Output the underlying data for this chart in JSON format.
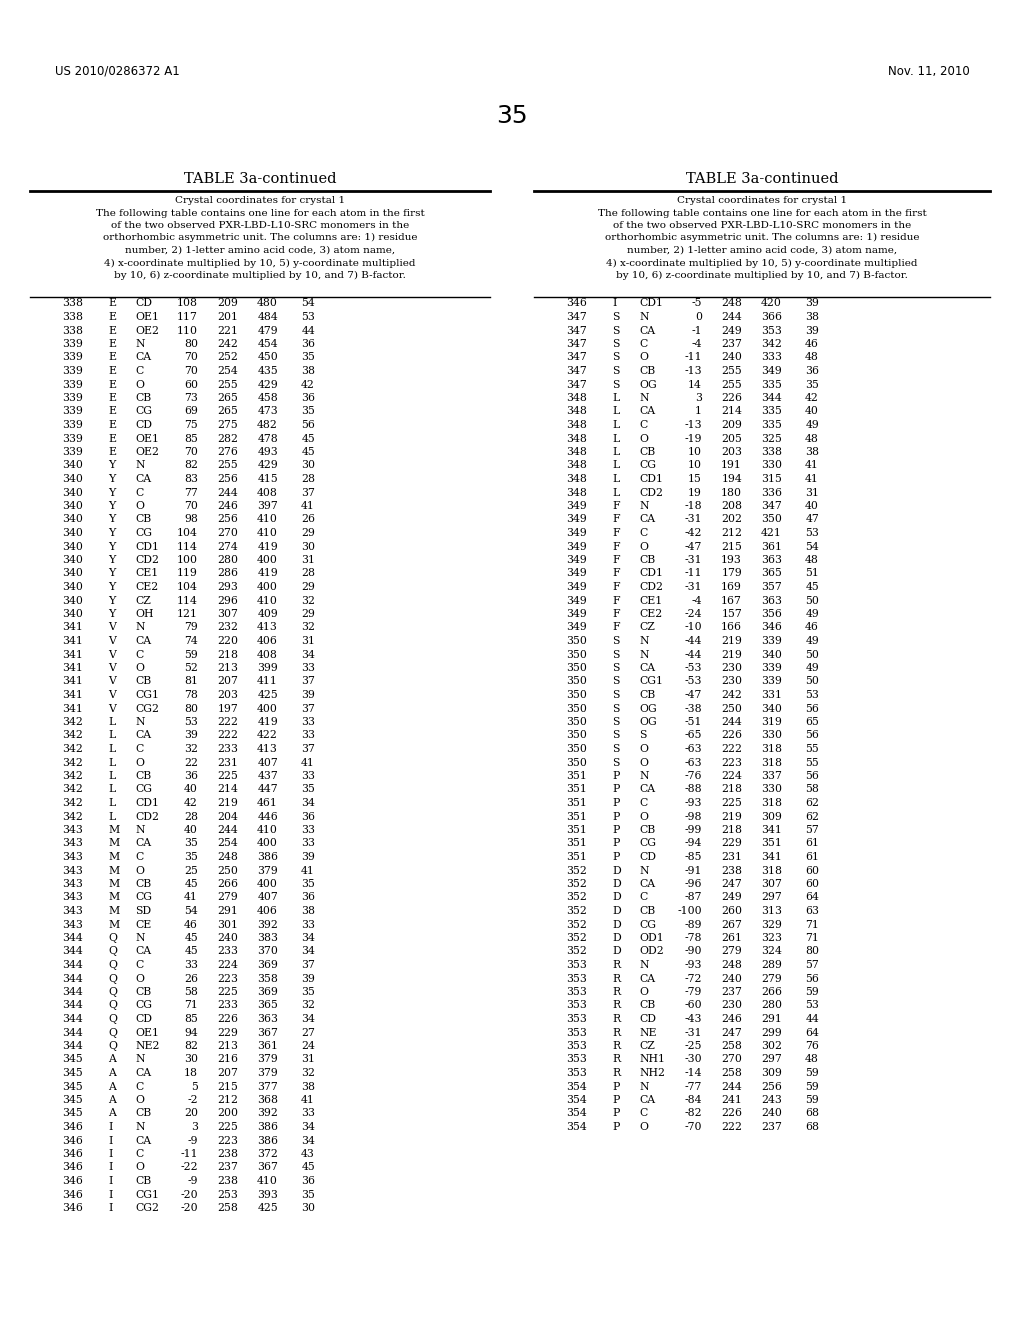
{
  "header_left": "US 2010/0286372 A1",
  "header_right": "Nov. 11, 2010",
  "page_number": "35",
  "table_title": "TABLE 3a-continued",
  "table_description": "Crystal coordinates for crystal 1\nThe following table contains one line for each atom in the first\nof the two observed PXR-LBD-L10-SRC monomers in the\northorhombic asymmetric unit. The columns are: 1) residue\nnumber, 2) 1-letter amino acid code, 3) atom name,\n4) x-coordinate multiplied by 10, 5) y-coordinate multiplied\nby 10, 6) z-coordinate multiplied by 10, and 7) B-factor.",
  "left_data": [
    [
      338,
      "E",
      "CD",
      108,
      209,
      480,
      54
    ],
    [
      338,
      "E",
      "OE1",
      117,
      201,
      484,
      53
    ],
    [
      338,
      "E",
      "OE2",
      110,
      221,
      479,
      44
    ],
    [
      339,
      "E",
      "N",
      80,
      242,
      454,
      36
    ],
    [
      339,
      "E",
      "CA",
      70,
      252,
      450,
      35
    ],
    [
      339,
      "E",
      "C",
      70,
      254,
      435,
      38
    ],
    [
      339,
      "E",
      "O",
      60,
      255,
      429,
      42
    ],
    [
      339,
      "E",
      "CB",
      73,
      265,
      458,
      36
    ],
    [
      339,
      "E",
      "CG",
      69,
      265,
      473,
      35
    ],
    [
      339,
      "E",
      "CD",
      75,
      275,
      482,
      56
    ],
    [
      339,
      "E",
      "OE1",
      85,
      282,
      478,
      45
    ],
    [
      339,
      "E",
      "OE2",
      70,
      276,
      493,
      45
    ],
    [
      340,
      "Y",
      "N",
      82,
      255,
      429,
      30
    ],
    [
      340,
      "Y",
      "CA",
      83,
      256,
      415,
      28
    ],
    [
      340,
      "Y",
      "C",
      77,
      244,
      408,
      37
    ],
    [
      340,
      "Y",
      "O",
      70,
      246,
      397,
      41
    ],
    [
      340,
      "Y",
      "CB",
      98,
      256,
      410,
      26
    ],
    [
      340,
      "Y",
      "CG",
      104,
      270,
      410,
      29
    ],
    [
      340,
      "Y",
      "CD1",
      114,
      274,
      419,
      30
    ],
    [
      340,
      "Y",
      "CD2",
      100,
      280,
      400,
      31
    ],
    [
      340,
      "Y",
      "CE1",
      119,
      286,
      419,
      28
    ],
    [
      340,
      "Y",
      "CE2",
      104,
      293,
      400,
      29
    ],
    [
      340,
      "Y",
      "CZ",
      114,
      296,
      410,
      32
    ],
    [
      340,
      "Y",
      "OH",
      121,
      307,
      409,
      29
    ],
    [
      341,
      "V",
      "N",
      79,
      232,
      413,
      32
    ],
    [
      341,
      "V",
      "CA",
      74,
      220,
      406,
      31
    ],
    [
      341,
      "V",
      "C",
      59,
      218,
      408,
      34
    ],
    [
      341,
      "V",
      "O",
      52,
      213,
      399,
      33
    ],
    [
      341,
      "V",
      "CB",
      81,
      207,
      411,
      37
    ],
    [
      341,
      "V",
      "CG1",
      78,
      203,
      425,
      39
    ],
    [
      341,
      "V",
      "CG2",
      80,
      197,
      400,
      37
    ],
    [
      342,
      "L",
      "N",
      53,
      222,
      419,
      33
    ],
    [
      342,
      "L",
      "CA",
      39,
      222,
      422,
      33
    ],
    [
      342,
      "L",
      "C",
      32,
      233,
      413,
      37
    ],
    [
      342,
      "L",
      "O",
      22,
      231,
      407,
      41
    ],
    [
      342,
      "L",
      "CB",
      36,
      225,
      437,
      33
    ],
    [
      342,
      "L",
      "CG",
      40,
      214,
      447,
      35
    ],
    [
      342,
      "L",
      "CD1",
      42,
      219,
      461,
      34
    ],
    [
      342,
      "L",
      "CD2",
      28,
      204,
      446,
      36
    ],
    [
      343,
      "M",
      "N",
      40,
      244,
      410,
      33
    ],
    [
      343,
      "M",
      "CA",
      35,
      254,
      400,
      33
    ],
    [
      343,
      "M",
      "C",
      35,
      248,
      386,
      39
    ],
    [
      343,
      "M",
      "O",
      25,
      250,
      379,
      41
    ],
    [
      343,
      "M",
      "CB",
      45,
      266,
      400,
      35
    ],
    [
      343,
      "M",
      "CG",
      41,
      279,
      407,
      36
    ],
    [
      343,
      "M",
      "SD",
      54,
      291,
      406,
      38
    ],
    [
      343,
      "M",
      "CE",
      46,
      301,
      392,
      33
    ],
    [
      344,
      "Q",
      "N",
      45,
      240,
      383,
      34
    ],
    [
      344,
      "Q",
      "CA",
      45,
      233,
      370,
      34
    ],
    [
      344,
      "Q",
      "C",
      33,
      224,
      369,
      37
    ],
    [
      344,
      "Q",
      "O",
      26,
      223,
      358,
      39
    ],
    [
      344,
      "Q",
      "CB",
      58,
      225,
      369,
      35
    ],
    [
      344,
      "Q",
      "CG",
      71,
      233,
      365,
      32
    ],
    [
      344,
      "Q",
      "CD",
      85,
      226,
      363,
      34
    ],
    [
      344,
      "Q",
      "OE1",
      94,
      229,
      367,
      27
    ],
    [
      344,
      "Q",
      "NE2",
      82,
      213,
      361,
      24
    ],
    [
      345,
      "A",
      "N",
      30,
      216,
      379,
      31
    ],
    [
      345,
      "A",
      "CA",
      18,
      207,
      379,
      32
    ],
    [
      345,
      "A",
      "C",
      5,
      215,
      377,
      38
    ],
    [
      345,
      "A",
      "O",
      -2,
      212,
      368,
      41
    ],
    [
      345,
      "A",
      "CB",
      20,
      200,
      392,
      33
    ],
    [
      346,
      "I",
      "N",
      3,
      225,
      386,
      34
    ],
    [
      346,
      "I",
      "CA",
      -9,
      223,
      386,
      34
    ],
    [
      346,
      "I",
      "C",
      -11,
      238,
      372,
      43
    ],
    [
      346,
      "I",
      "O",
      -22,
      237,
      367,
      45
    ],
    [
      346,
      "I",
      "CB",
      -9,
      238,
      410,
      36
    ],
    [
      346,
      "I",
      "CG1",
      -20,
      253,
      393,
      35
    ],
    [
      346,
      "I",
      "CG2",
      -20,
      258,
      425,
      30
    ]
  ],
  "right_data": [
    [
      346,
      "I",
      "CD1",
      -5,
      248,
      420,
      39
    ],
    [
      347,
      "S",
      "N",
      0,
      244,
      366,
      38
    ],
    [
      347,
      "S",
      "CA",
      -1,
      249,
      353,
      39
    ],
    [
      347,
      "S",
      "C",
      -4,
      237,
      342,
      46
    ],
    [
      347,
      "S",
      "O",
      -11,
      240,
      333,
      48
    ],
    [
      347,
      "S",
      "CB",
      -13,
      255,
      349,
      36
    ],
    [
      347,
      "S",
      "OG",
      14,
      255,
      335,
      35
    ],
    [
      348,
      "L",
      "N",
      3,
      226,
      344,
      42
    ],
    [
      348,
      "L",
      "CA",
      1,
      214,
      335,
      40
    ],
    [
      348,
      "L",
      "C",
      -13,
      209,
      335,
      49
    ],
    [
      348,
      "L",
      "O",
      -19,
      205,
      325,
      48
    ],
    [
      348,
      "L",
      "CB",
      10,
      203,
      338,
      38
    ],
    [
      348,
      "L",
      "CG",
      10,
      191,
      330,
      41
    ],
    [
      348,
      "L",
      "CD1",
      15,
      194,
      315,
      41
    ],
    [
      348,
      "L",
      "CD2",
      19,
      180,
      336,
      31
    ],
    [
      349,
      "F",
      "N",
      -18,
      208,
      347,
      40
    ],
    [
      349,
      "F",
      "CA",
      -31,
      202,
      350,
      47
    ],
    [
      349,
      "F",
      "C",
      -42,
      212,
      421,
      53
    ],
    [
      349,
      "F",
      "O",
      -47,
      215,
      361,
      54
    ],
    [
      349,
      "F",
      "CB",
      -31,
      193,
      363,
      48
    ],
    [
      349,
      "F",
      "CD1",
      -11,
      179,
      365,
      51
    ],
    [
      349,
      "F",
      "CD2",
      -31,
      169,
      357,
      45
    ],
    [
      349,
      "F",
      "CE1",
      -4,
      167,
      363,
      50
    ],
    [
      349,
      "F",
      "CE2",
      -24,
      157,
      356,
      49
    ],
    [
      349,
      "F",
      "CZ",
      -10,
      166,
      346,
      46
    ],
    [
      350,
      "S",
      "N",
      -44,
      219,
      339,
      49
    ],
    [
      350,
      "S",
      "N",
      -44,
      219,
      340,
      50
    ],
    [
      350,
      "S",
      "CA",
      -53,
      230,
      339,
      49
    ],
    [
      350,
      "S",
      "CG1",
      -53,
      230,
      339,
      50
    ],
    [
      350,
      "S",
      "CB",
      -47,
      242,
      331,
      53
    ],
    [
      350,
      "S",
      "OG",
      -38,
      250,
      340,
      56
    ],
    [
      350,
      "S",
      "OG",
      -51,
      244,
      319,
      65
    ],
    [
      350,
      "S",
      "S",
      -65,
      226,
      330,
      56
    ],
    [
      350,
      "S",
      "O",
      -63,
      222,
      318,
      55
    ],
    [
      350,
      "S",
      "O",
      -63,
      223,
      318,
      55
    ],
    [
      351,
      "P",
      "N",
      -76,
      224,
      337,
      56
    ],
    [
      351,
      "P",
      "CA",
      -88,
      218,
      330,
      58
    ],
    [
      351,
      "P",
      "C",
      -93,
      225,
      318,
      62
    ],
    [
      351,
      "P",
      "O",
      -98,
      219,
      309,
      62
    ],
    [
      351,
      "P",
      "CB",
      -99,
      218,
      341,
      57
    ],
    [
      351,
      "P",
      "CG",
      -94,
      229,
      351,
      61
    ],
    [
      351,
      "P",
      "CD",
      -85,
      231,
      341,
      61
    ],
    [
      352,
      "D",
      "N",
      -91,
      238,
      318,
      60
    ],
    [
      352,
      "D",
      "CA",
      -96,
      247,
      307,
      60
    ],
    [
      352,
      "D",
      "C",
      -87,
      249,
      297,
      64
    ],
    [
      352,
      "D",
      "CB",
      -100,
      260,
      313,
      63
    ],
    [
      352,
      "D",
      "CG",
      -89,
      267,
      329,
      71
    ],
    [
      352,
      "D",
      "OD1",
      -78,
      261,
      323,
      71
    ],
    [
      352,
      "D",
      "OD2",
      -90,
      279,
      324,
      80
    ],
    [
      353,
      "R",
      "N",
      -93,
      248,
      289,
      57
    ],
    [
      353,
      "R",
      "CA",
      -72,
      240,
      279,
      56
    ],
    [
      353,
      "R",
      "O",
      -79,
      237,
      266,
      59
    ],
    [
      353,
      "R",
      "CB",
      -60,
      230,
      280,
      53
    ],
    [
      353,
      "R",
      "CD",
      -43,
      246,
      291,
      44
    ],
    [
      353,
      "R",
      "NE",
      -31,
      247,
      299,
      64
    ],
    [
      353,
      "R",
      "CZ",
      -25,
      258,
      302,
      76
    ],
    [
      353,
      "R",
      "NH1",
      -30,
      270,
      297,
      48
    ],
    [
      353,
      "R",
      "NH2",
      -14,
      258,
      309,
      59
    ],
    [
      354,
      "P",
      "N",
      -77,
      244,
      256,
      59
    ],
    [
      354,
      "P",
      "CA",
      -84,
      241,
      243,
      59
    ],
    [
      354,
      "P",
      "C",
      -82,
      226,
      240,
      68
    ],
    [
      354,
      "P",
      "O",
      -70,
      222,
      237,
      68
    ]
  ],
  "bg_color": "#ffffff",
  "text_color": "#000000",
  "font_size_header": 8.5,
  "font_size_title": 10.5,
  "font_size_page": 18,
  "font_size_table": 7.8,
  "font_size_desc": 7.5
}
